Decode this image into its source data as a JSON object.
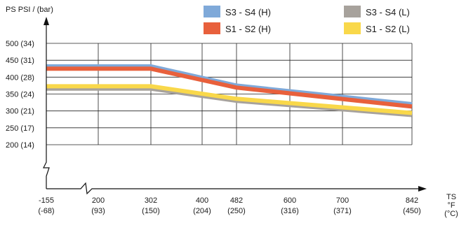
{
  "chart_data": {
    "type": "line",
    "y_axis_label": "PS PSI / (bar)",
    "x_axis_label": [
      "TS",
      "°F",
      "(°C)"
    ],
    "x_ticks": [
      {
        "value": "-155",
        "sub": "(-68)"
      },
      {
        "value": "200",
        "sub": "(93)"
      },
      {
        "value": "302",
        "sub": "(150)"
      },
      {
        "value": "400",
        "sub": "(204)"
      },
      {
        "value": "482",
        "sub": "(250)"
      },
      {
        "value": "600",
        "sub": "(316)"
      },
      {
        "value": "700",
        "sub": "(371)"
      },
      {
        "value": "842",
        "sub": "(450)"
      }
    ],
    "y_ticks": [
      {
        "value": 500,
        "label": "500 (34)"
      },
      {
        "value": 450,
        "label": "450 (31)"
      },
      {
        "value": 400,
        "label": "400 (28)"
      },
      {
        "value": 350,
        "label": "350 (24)"
      },
      {
        "value": 300,
        "label": "300 (21)"
      },
      {
        "value": 250,
        "label": "250 (17)"
      },
      {
        "value": 200,
        "label": "200 (14)"
      }
    ],
    "ylim": [
      200,
      500
    ],
    "axis_breaks": true,
    "grid": true,
    "legend_position": "top-right",
    "series": [
      {
        "name": "S3 - S4 (H)",
        "color": "#7fa9d9",
        "points": [
          [
            -155,
            432
          ],
          [
            302,
            432
          ],
          [
            482,
            375
          ],
          [
            842,
            320
          ]
        ]
      },
      {
        "name": "S1 - S2 (H)",
        "color": "#e8603c",
        "points": [
          [
            -155,
            425
          ],
          [
            302,
            425
          ],
          [
            482,
            369
          ],
          [
            842,
            313
          ]
        ]
      },
      {
        "name": "S3 - S4 (L)",
        "color": "#a7a29c",
        "points": [
          [
            -155,
            366
          ],
          [
            302,
            366
          ],
          [
            482,
            330
          ],
          [
            842,
            288
          ]
        ]
      },
      {
        "name": "S1 - S2 (L)",
        "color": "#f9d84a",
        "points": [
          [
            -155,
            373
          ],
          [
            302,
            373
          ],
          [
            482,
            336
          ],
          [
            842,
            294
          ]
        ]
      }
    ]
  }
}
